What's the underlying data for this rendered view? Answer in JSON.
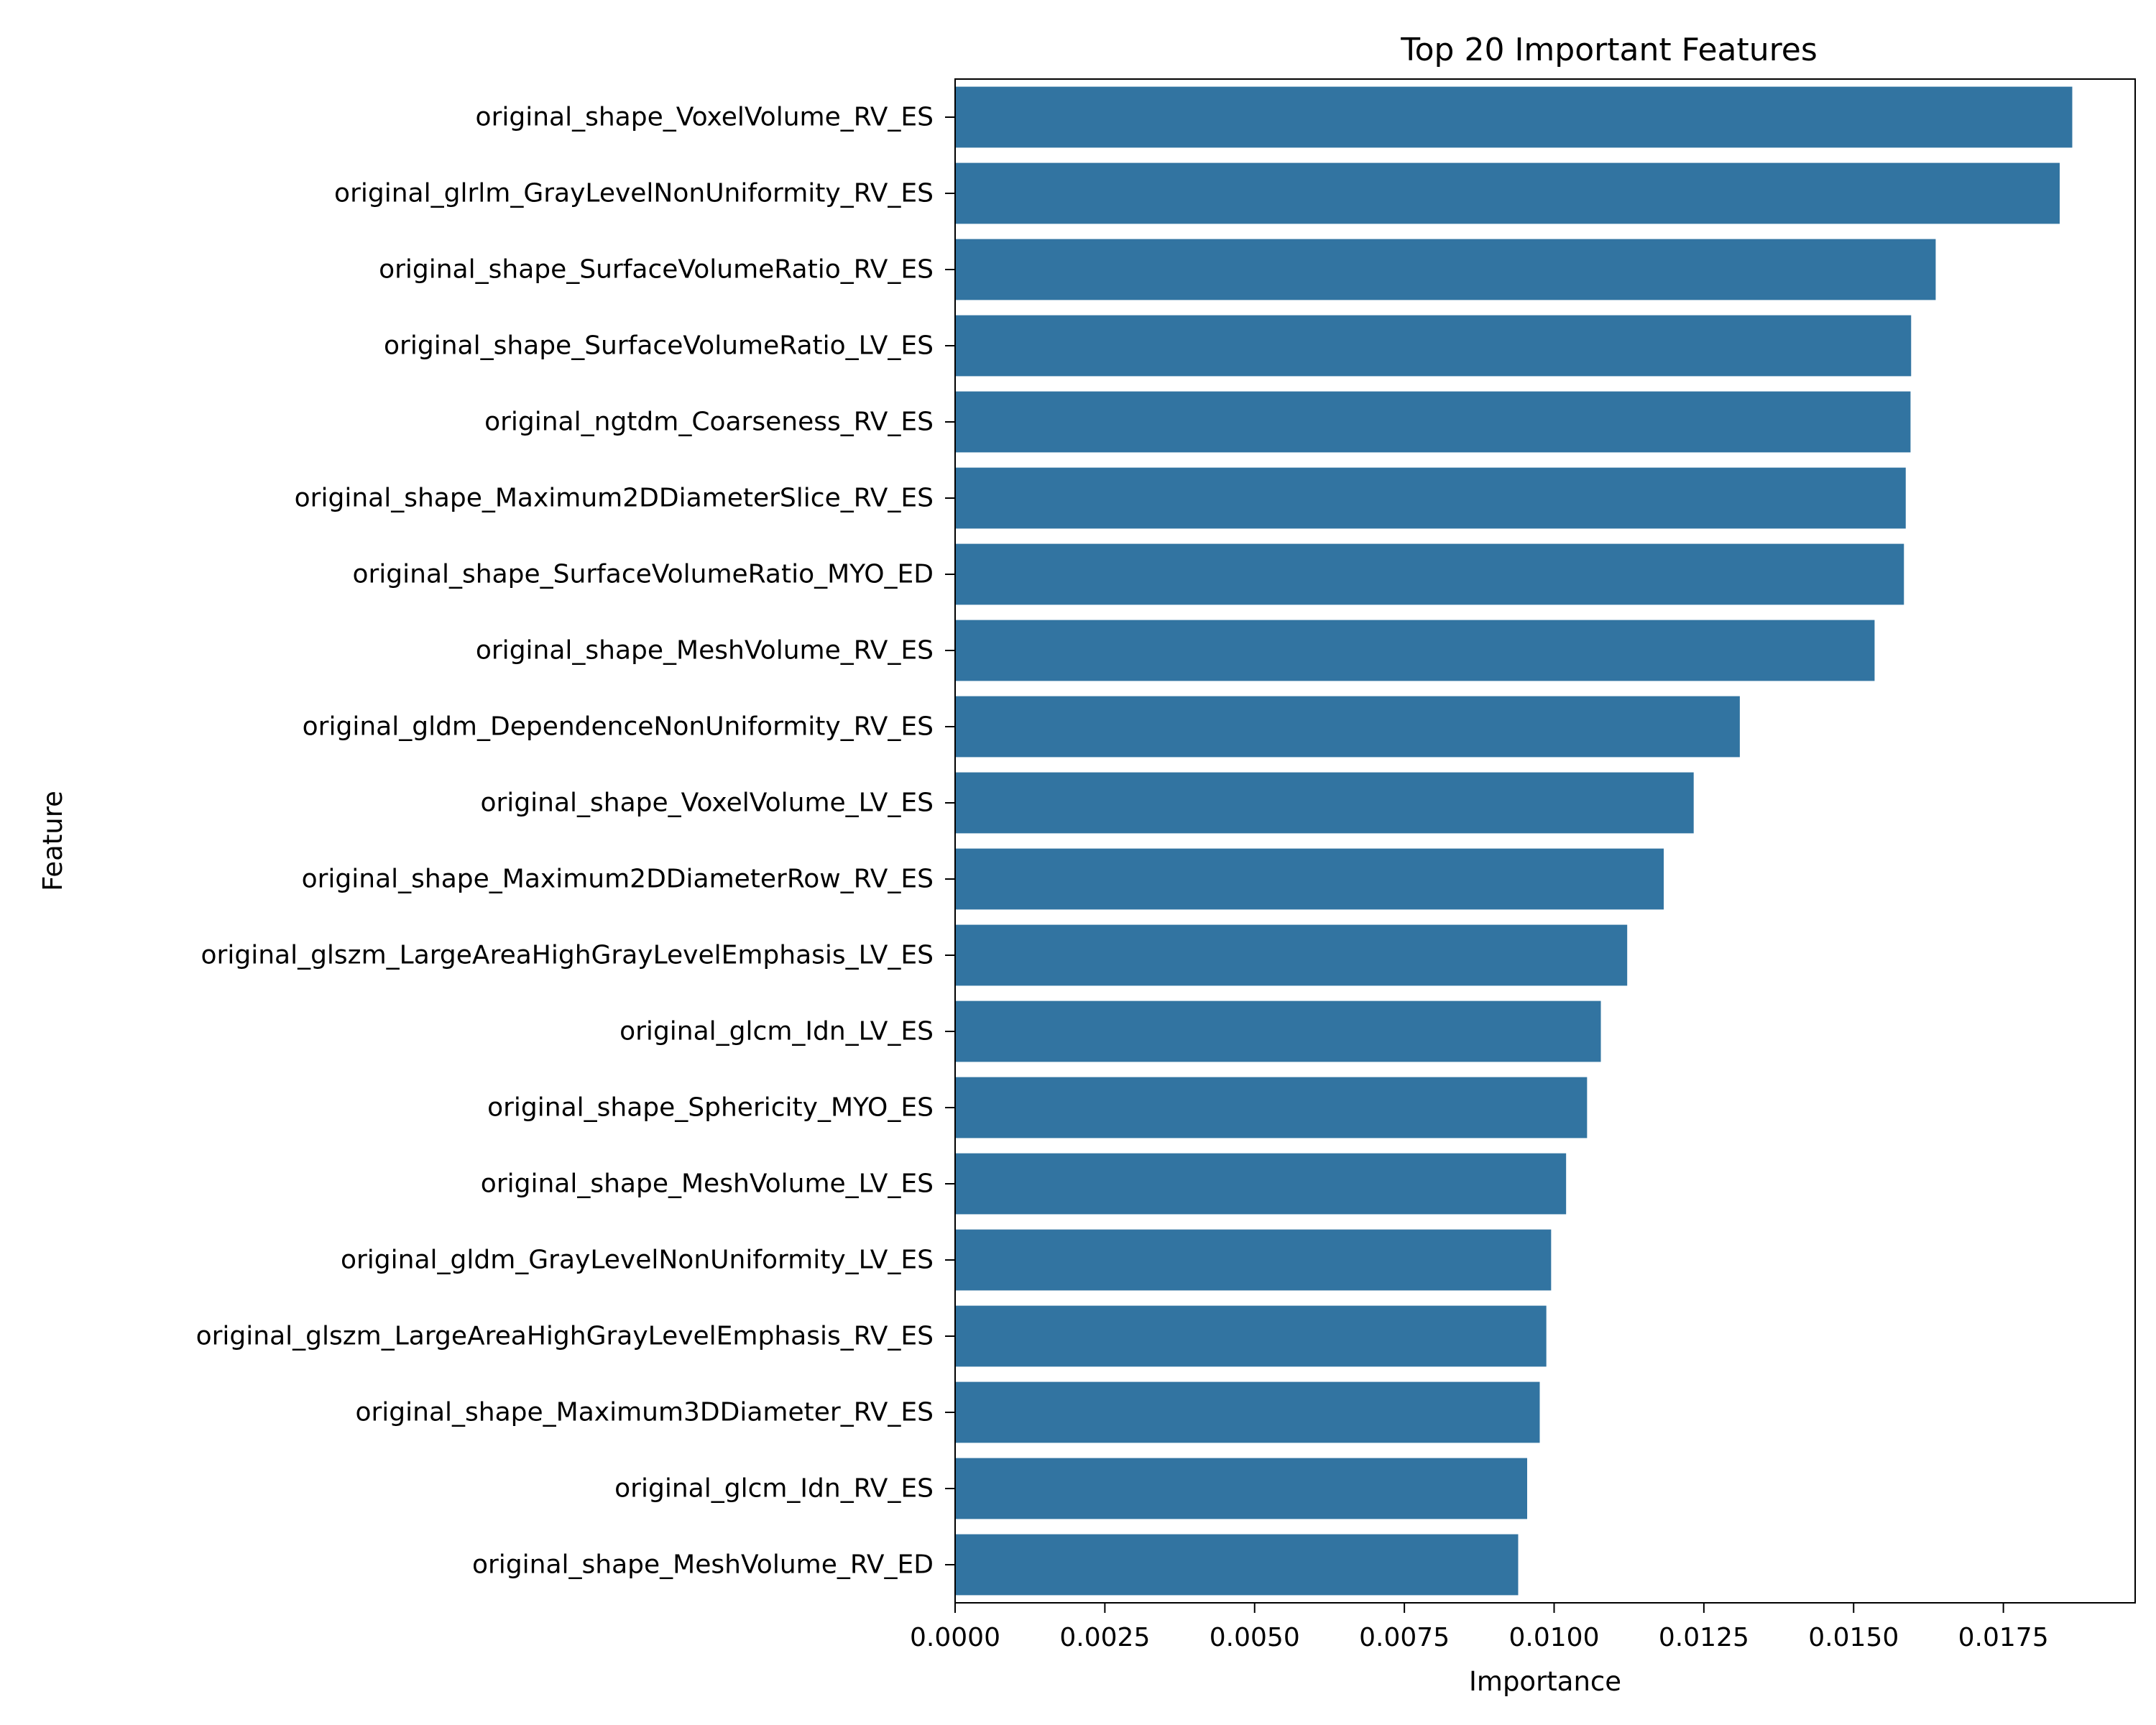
{
  "chart_data": {
    "type": "bar",
    "orientation": "horizontal",
    "title": "Top 20 Important Features",
    "xlabel": "Importance",
    "ylabel": "Feature",
    "xlim": [
      0,
      0.0197
    ],
    "xticks": [
      0.0,
      0.0025,
      0.005,
      0.0075,
      0.01,
      0.0125,
      0.015,
      0.0175
    ],
    "xtick_labels": [
      "0.0000",
      "0.0025",
      "0.0050",
      "0.0075",
      "0.0100",
      "0.0125",
      "0.0150",
      "0.0175"
    ],
    "grid": false,
    "bar_color": "#3274a1",
    "categories": [
      "original_shape_VoxelVolume_RV_ES",
      "original_glrlm_GrayLevelNonUniformity_RV_ES",
      "original_shape_SurfaceVolumeRatio_RV_ES",
      "original_shape_SurfaceVolumeRatio_LV_ES",
      "original_ngtdm_Coarseness_RV_ES",
      "original_shape_Maximum2DDiameterSlice_RV_ES",
      "original_shape_SurfaceVolumeRatio_MYO_ED",
      "original_shape_MeshVolume_RV_ES",
      "original_gldm_DependenceNonUniformity_RV_ES",
      "original_shape_VoxelVolume_LV_ES",
      "original_shape_Maximum2DDiameterRow_RV_ES",
      "original_glszm_LargeAreaHighGrayLevelEmphasis_LV_ES",
      "original_glcm_Idn_LV_ES",
      "original_shape_Sphericity_MYO_ES",
      "original_shape_MeshVolume_LV_ES",
      "original_gldm_GrayLevelNonUniformity_LV_ES",
      "original_glszm_LargeAreaHighGrayLevelEmphasis_RV_ES",
      "original_shape_Maximum3DDiameter_RV_ES",
      "original_glcm_Idn_RV_ES",
      "original_shape_MeshVolume_RV_ED"
    ],
    "values": [
      0.01865,
      0.01844,
      0.01637,
      0.01596,
      0.01595,
      0.01587,
      0.01584,
      0.01535,
      0.0131,
      0.01233,
      0.01183,
      0.01122,
      0.01078,
      0.01055,
      0.0102,
      0.00995,
      0.00987,
      0.00976,
      0.00955,
      0.0094
    ]
  }
}
